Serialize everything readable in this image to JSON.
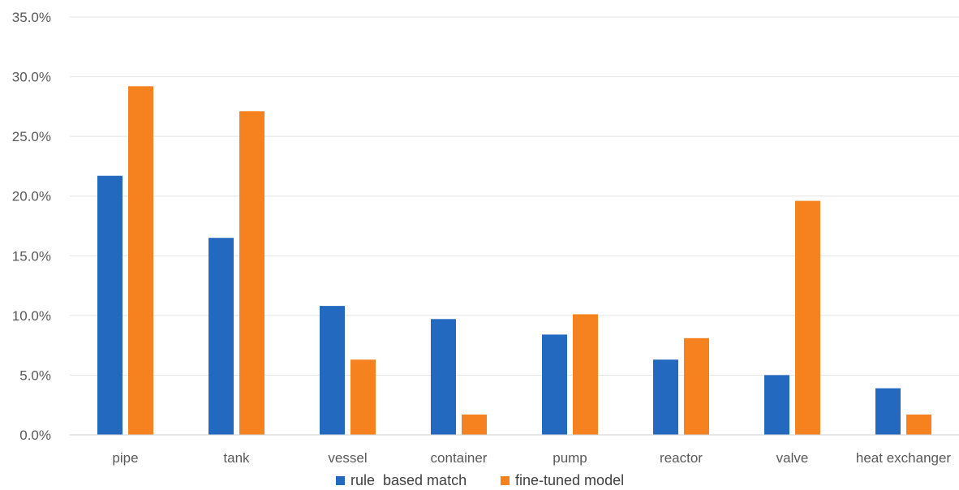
{
  "chart_data": {
    "type": "bar",
    "categories": [
      "pipe",
      "tank",
      "vessel",
      "container",
      "pump",
      "reactor",
      "valve",
      "heat exchanger"
    ],
    "series": [
      {
        "name": "rule  based match",
        "color": "#2469c0",
        "values": [
          21.7,
          16.5,
          10.8,
          9.7,
          8.4,
          6.3,
          5.0,
          3.9
        ]
      },
      {
        "name": "fine-tuned model",
        "color": "#f5811f",
        "values": [
          29.2,
          27.1,
          6.3,
          1.7,
          10.1,
          8.1,
          19.6,
          1.7
        ]
      }
    ],
    "yticks": [
      "0.0%",
      "5.0%",
      "10.0%",
      "15.0%",
      "20.0%",
      "25.0%",
      "30.0%",
      "35.0%"
    ],
    "ylim": [
      0,
      35
    ],
    "grid": true,
    "legend_position": "bottom"
  }
}
